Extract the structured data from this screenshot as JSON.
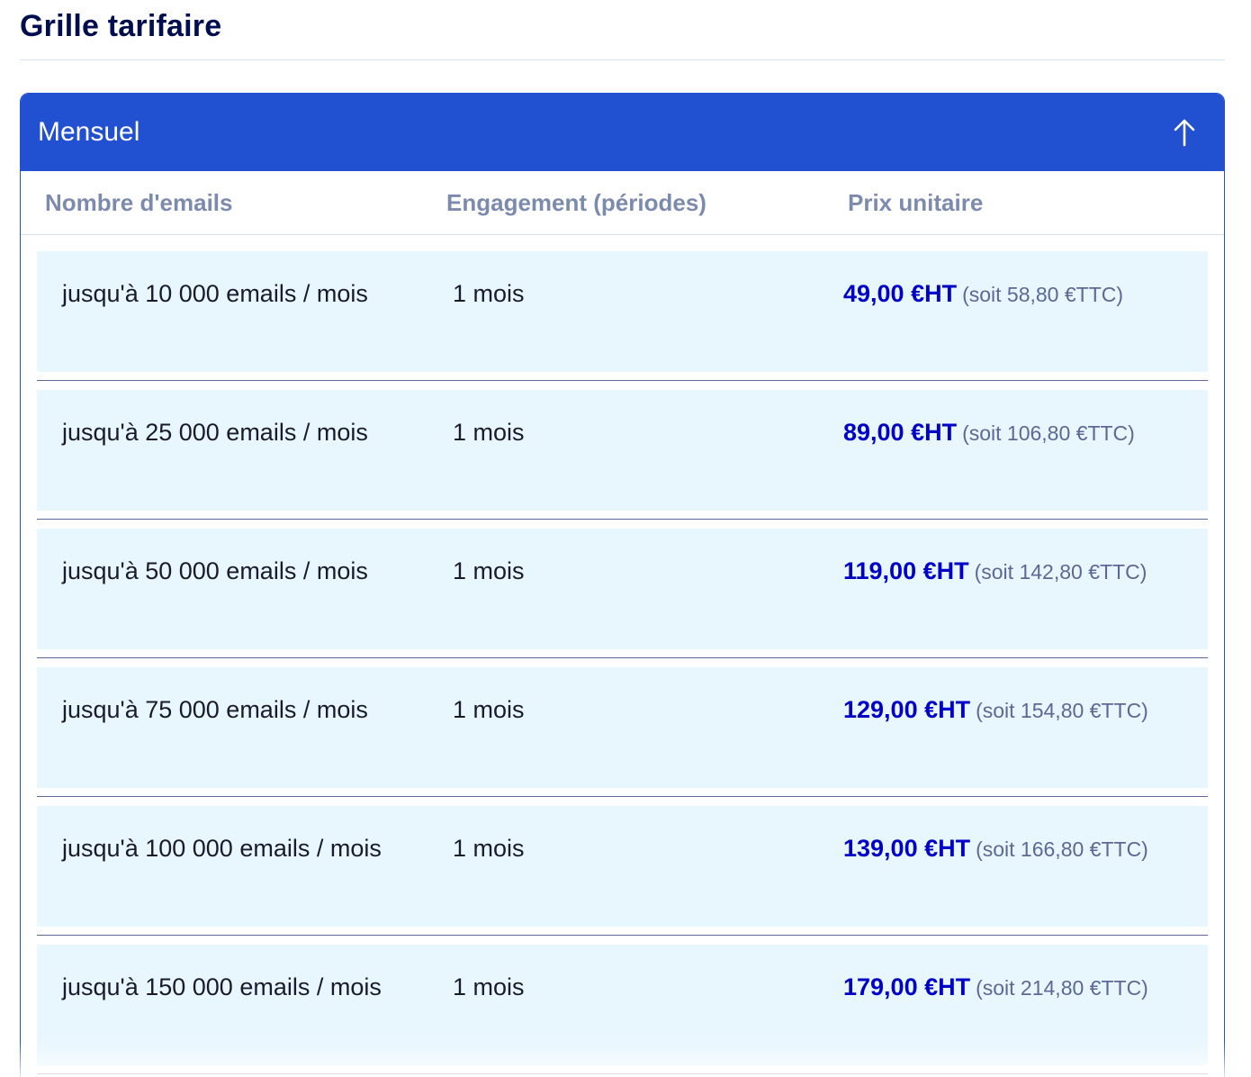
{
  "page": {
    "title": "Grille tarifaire"
  },
  "panel": {
    "title": "Mensuel",
    "toggle_icon": "arrow-up-icon"
  },
  "table": {
    "headers": [
      "Nombre d'emails",
      "Engagement (périodes)",
      "Prix unitaire"
    ],
    "rows": [
      {
        "volume": "jusqu'à 10 000 emails / mois",
        "engagement": "1 mois",
        "price_ht": "49,00 €HT",
        "price_ttc": "(soit 58,80 €TTC)"
      },
      {
        "volume": "jusqu'à 25 000 emails / mois",
        "engagement": "1 mois",
        "price_ht": "89,00 €HT",
        "price_ttc": "(soit 106,80 €TTC)"
      },
      {
        "volume": "jusqu'à 50 000 emails / mois",
        "engagement": "1 mois",
        "price_ht": "119,00 €HT",
        "price_ttc": "(soit 142,80 €TTC)"
      },
      {
        "volume": "jusqu'à 75 000 emails / mois",
        "engagement": "1 mois",
        "price_ht": "129,00 €HT",
        "price_ttc": "(soit 154,80 €TTC)"
      },
      {
        "volume": "jusqu'à 100 000 emails / mois",
        "engagement": "1 mois",
        "price_ht": "139,00 €HT",
        "price_ttc": "(soit 166,80 €TTC)"
      },
      {
        "volume": "jusqu'à 150 000 emails / mois",
        "engagement": "1 mois",
        "price_ht": "179,00 €HT",
        "price_ttc": "(soit 214,80 €TTC)"
      }
    ]
  },
  "colors": {
    "title": "#000e50",
    "accent": "#2150d1",
    "header_text": "#7c8bad",
    "row_bg": "#e8f7fd",
    "price_ht": "#0000c8",
    "price_ttc": "#5c6896"
  }
}
